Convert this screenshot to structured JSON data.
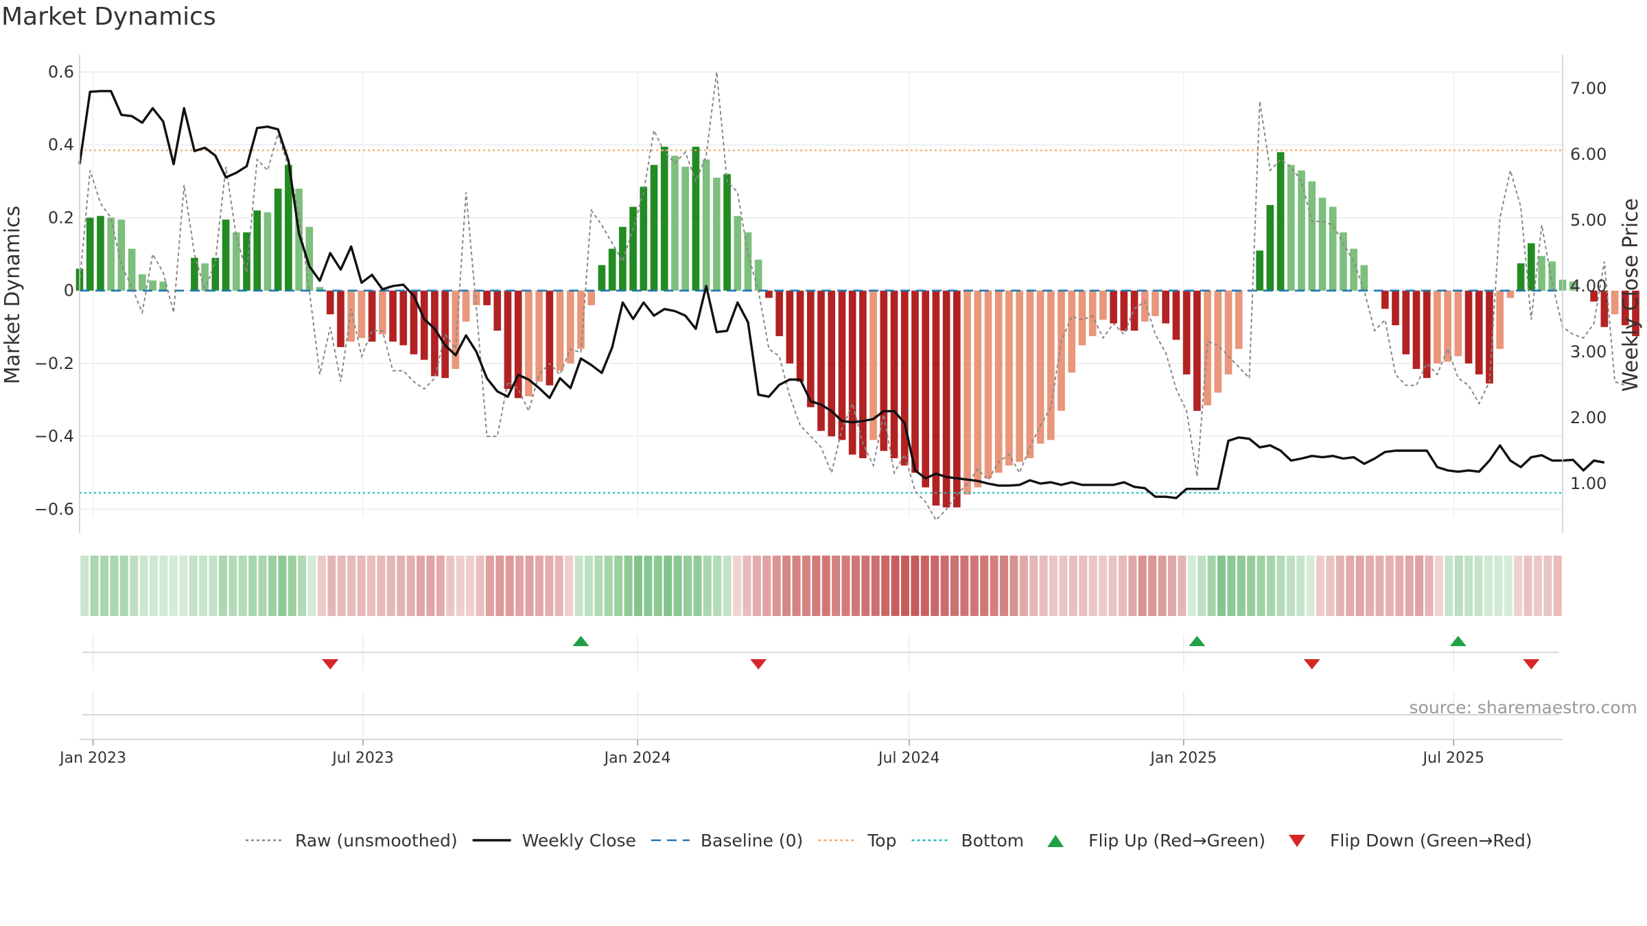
{
  "title": "Market Dynamics",
  "source_text": "source: sharemaestro.com",
  "colors": {
    "strong_green": "#228b22",
    "light_green": "#7dbf7d",
    "strong_red": "#b22222",
    "light_red": "#e9967a",
    "weekly_close": "#111111",
    "raw": "#888888",
    "baseline": "#1f77b4",
    "top": "#f4a460",
    "bottom": "#20c0c0",
    "flip_up": "#22a045",
    "flip_down": "#d62728"
  },
  "chart_data": {
    "type": "bar",
    "title": "Market Dynamics",
    "ylabel_left": "Market Dynamics",
    "ylabel_right": "Weekly Close Price",
    "ylim_left": [
      -0.62,
      0.6
    ],
    "ylim_right": [
      0.5,
      7.25
    ],
    "yticks_left": [
      0.6,
      0.4,
      0.2,
      0,
      -0.2,
      -0.4,
      -0.6
    ],
    "yticks_left_labels": [
      "0.6",
      "0.4",
      "0.2",
      "0",
      "−0.2",
      "−0.4",
      "−0.6"
    ],
    "yticks_right": [
      7,
      6,
      5,
      4,
      3,
      2,
      1
    ],
    "yticks_right_labels": [
      "7.00",
      "6.00",
      "5.00",
      "4.00",
      "3.00",
      "2.00",
      "1.00"
    ],
    "x_range": [
      "2022-12-23",
      "2025-09-12"
    ],
    "x_ticks": [
      {
        "date": "2023-01-01",
        "label": "Jan 2023"
      },
      {
        "date": "2023-07-01",
        "label": "Jul 2023"
      },
      {
        "date": "2024-01-01",
        "label": "Jan 2024"
      },
      {
        "date": "2024-07-01",
        "label": "Jul 2024"
      },
      {
        "date": "2025-01-01",
        "label": "Jan 2025"
      },
      {
        "date": "2025-07-01",
        "label": "Jul 2025"
      }
    ],
    "start_date": "2022-12-23",
    "week_interval_days": 7,
    "bar_values": [
      0.06,
      0.2,
      0.205,
      0.2,
      0.195,
      0.115,
      0.045,
      0.028,
      0.025,
      0.0,
      0.0,
      0.09,
      0.075,
      0.09,
      0.195,
      0.16,
      0.16,
      0.22,
      0.215,
      0.28,
      0.345,
      0.28,
      0.175,
      0.01,
      -0.065,
      -0.155,
      -0.14,
      -0.13,
      -0.14,
      -0.12,
      -0.14,
      -0.15,
      -0.175,
      -0.19,
      -0.235,
      -0.24,
      -0.215,
      -0.085,
      -0.04,
      -0.04,
      -0.11,
      -0.27,
      -0.295,
      -0.29,
      -0.25,
      -0.26,
      -0.22,
      -0.2,
      -0.16,
      -0.04,
      0.07,
      0.115,
      0.175,
      0.23,
      0.285,
      0.345,
      0.395,
      0.37,
      0.34,
      0.395,
      0.36,
      0.31,
      0.32,
      0.205,
      0.16,
      0.085,
      -0.02,
      -0.125,
      -0.2,
      -0.25,
      -0.32,
      -0.385,
      -0.4,
      -0.41,
      -0.45,
      -0.46,
      -0.41,
      -0.44,
      -0.46,
      -0.48,
      -0.5,
      -0.54,
      -0.59,
      -0.595,
      -0.595,
      -0.56,
      -0.54,
      -0.515,
      -0.5,
      -0.48,
      -0.47,
      -0.46,
      -0.42,
      -0.41,
      -0.33,
      -0.225,
      -0.15,
      -0.125,
      -0.08,
      -0.09,
      -0.11,
      -0.11,
      -0.085,
      -0.07,
      -0.09,
      -0.135,
      -0.23,
      -0.33,
      -0.315,
      -0.28,
      -0.23,
      -0.16,
      0.0,
      0.11,
      0.235,
      0.38,
      0.345,
      0.33,
      0.3,
      0.255,
      0.23,
      0.16,
      0.115,
      0.07,
      0.0,
      -0.05,
      -0.095,
      -0.175,
      -0.215,
      -0.24,
      -0.2,
      -0.195,
      -0.18,
      -0.2,
      -0.23,
      -0.255,
      -0.16,
      -0.02,
      0.075,
      0.13,
      0.095,
      0.08,
      0.03,
      0.025,
      0.0,
      -0.03,
      -0.1,
      -0.065,
      -0.095,
      -0.125
    ],
    "raw_values": [
      0.02,
      0.33,
      0.24,
      0.2,
      0.07,
      0.01,
      -0.06,
      0.1,
      0.05,
      -0.06,
      0.29,
      0.1,
      0.0,
      0.08,
      0.34,
      0.15,
      0.05,
      0.36,
      0.33,
      0.43,
      0.34,
      0.21,
      0.0,
      -0.23,
      -0.1,
      -0.25,
      -0.05,
      -0.18,
      -0.11,
      -0.11,
      -0.22,
      -0.22,
      -0.25,
      -0.27,
      -0.24,
      -0.12,
      -0.16,
      0.27,
      -0.05,
      -0.4,
      -0.4,
      -0.25,
      -0.27,
      -0.33,
      -0.23,
      -0.2,
      -0.23,
      -0.16,
      -0.17,
      0.22,
      0.18,
      0.13,
      0.08,
      0.17,
      0.27,
      0.44,
      0.38,
      0.35,
      0.38,
      0.3,
      0.37,
      0.6,
      0.3,
      0.27,
      0.1,
      0.0,
      -0.16,
      -0.18,
      -0.29,
      -0.37,
      -0.4,
      -0.43,
      -0.5,
      -0.38,
      -0.31,
      -0.42,
      -0.48,
      -0.34,
      -0.5,
      -0.45,
      -0.55,
      -0.58,
      -0.63,
      -0.6,
      -0.56,
      -0.53,
      -0.49,
      -0.52,
      -0.47,
      -0.45,
      -0.5,
      -0.43,
      -0.37,
      -0.32,
      -0.14,
      -0.07,
      -0.08,
      -0.07,
      -0.13,
      -0.09,
      -0.12,
      -0.05,
      -0.03,
      -0.12,
      -0.17,
      -0.27,
      -0.33,
      -0.51,
      -0.14,
      -0.15,
      -0.18,
      -0.21,
      -0.24,
      0.52,
      0.33,
      0.36,
      0.34,
      0.3,
      0.19,
      0.19,
      0.18,
      0.13,
      0.08,
      0.0,
      -0.11,
      -0.08,
      -0.23,
      -0.26,
      -0.26,
      -0.2,
      -0.23,
      -0.16,
      -0.24,
      -0.26,
      -0.31,
      -0.25,
      0.2,
      0.33,
      0.23,
      -0.08,
      0.18,
      0.02,
      -0.1,
      -0.12,
      -0.13,
      -0.09,
      0.08,
      -0.25,
      -0.26
    ],
    "close_values": [
      5.85,
      6.95,
      6.96,
      6.96,
      6.6,
      6.58,
      6.48,
      6.7,
      6.5,
      5.85,
      6.7,
      6.05,
      6.1,
      5.98,
      5.65,
      5.72,
      5.82,
      6.4,
      6.42,
      6.38,
      5.9,
      4.8,
      4.3,
      4.08,
      4.5,
      4.25,
      4.6,
      4.05,
      4.17,
      3.95,
      4.0,
      4.02,
      3.85,
      3.5,
      3.35,
      3.1,
      2.95,
      3.25,
      3.0,
      2.6,
      2.4,
      2.32,
      2.65,
      2.58,
      2.45,
      2.3,
      2.6,
      2.45,
      2.9,
      2.8,
      2.68,
      3.07,
      3.75,
      3.5,
      3.75,
      3.55,
      3.65,
      3.62,
      3.55,
      3.35,
      4.0,
      3.3,
      3.32,
      3.75,
      3.45,
      2.35,
      2.32,
      2.5,
      2.58,
      2.58,
      2.25,
      2.2,
      2.1,
      1.95,
      1.93,
      1.95,
      1.98,
      2.1,
      2.1,
      1.92,
      1.2,
      1.08,
      1.15,
      1.1,
      1.08,
      1.06,
      1.04,
      1.0,
      0.97,
      0.97,
      0.98,
      1.05,
      1.0,
      1.02,
      0.98,
      1.02,
      0.98,
      0.98,
      0.98,
      0.98,
      1.02,
      0.95,
      0.93,
      0.8,
      0.8,
      0.78,
      0.92,
      0.92,
      0.92,
      0.92,
      1.65,
      1.7,
      1.68,
      1.55,
      1.58,
      1.5,
      1.35,
      1.38,
      1.42,
      1.4,
      1.42,
      1.38,
      1.4,
      1.3,
      1.38,
      1.48,
      1.5,
      1.5,
      1.5,
      1.5,
      1.25,
      1.2,
      1.18,
      1.2,
      1.18,
      1.35,
      1.58,
      1.35,
      1.25,
      1.4,
      1.43,
      1.35,
      1.35,
      1.36,
      1.2,
      1.35,
      1.32
    ],
    "baseline": 0,
    "top": 0.385,
    "bottom": -0.555,
    "flip_up_dates": [
      "2023-11-24",
      "2025-01-10",
      "2025-07-04"
    ],
    "flip_down_dates": [
      "2023-06-09",
      "2024-03-22",
      "2025-03-28",
      "2025-08-22"
    ]
  },
  "legend": [
    {
      "label": "Raw (unsmoothed)",
      "style": "dotted",
      "color": "#888888"
    },
    {
      "label": "Weekly Close",
      "style": "solid",
      "color": "#111111"
    },
    {
      "label": "Baseline (0)",
      "style": "dashed",
      "color": "#1f77b4"
    },
    {
      "label": "Top",
      "style": "dotted",
      "color": "#f4a460"
    },
    {
      "label": "Bottom",
      "style": "dotted",
      "color": "#20c0c0"
    },
    {
      "label": "Flip Up (Red→Green)",
      "style": "triangle-up",
      "color": "#22a045"
    },
    {
      "label": "Flip Down (Green→Red)",
      "style": "triangle-down",
      "color": "#d62728"
    }
  ]
}
